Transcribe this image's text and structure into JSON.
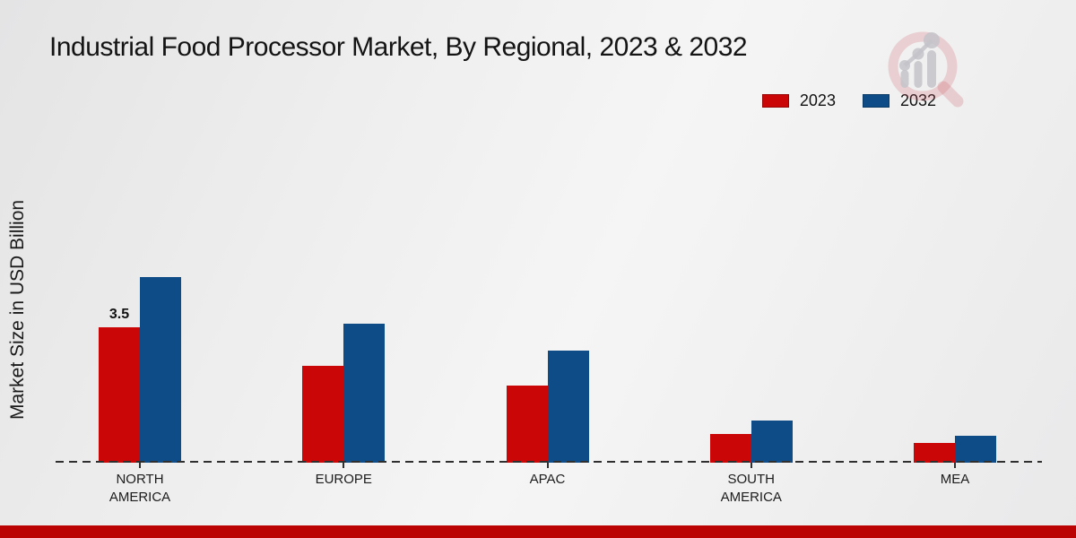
{
  "page": {
    "title": "Industrial Food Processor Market, By Regional, 2023 & 2032",
    "ylabel": "Market Size in USD Billion"
  },
  "legend": {
    "items": [
      {
        "label": "2023",
        "color": "#cb0606"
      },
      {
        "label": "2032",
        "color": "#0d4c87"
      }
    ]
  },
  "colors": {
    "series_2023": "#cb0606",
    "series_2032": "#0d4c87",
    "footer_bar": "#bb0303",
    "axis": "#2f2f2f",
    "background": "#ececec"
  },
  "watermark": {
    "name": "market-research-magnifier-logo"
  },
  "chart_data": {
    "type": "bar",
    "title": "Industrial Food Processor Market, By Regional, 2023 & 2032",
    "ylabel": "Market Size in USD Billion",
    "categories": [
      "NORTH AMERICA",
      "EUROPE",
      "APAC",
      "SOUTH AMERICA",
      "MEA"
    ],
    "series": [
      {
        "name": "2023",
        "color": "#cb0606",
        "values": [
          3.5,
          2.5,
          2.0,
          0.75,
          0.5
        ]
      },
      {
        "name": "2032",
        "color": "#0d4c87",
        "values": [
          4.8,
          3.6,
          2.9,
          1.1,
          0.7
        ]
      }
    ],
    "bar_labels": [
      {
        "series_index": 0,
        "category_index": 0,
        "text": "3.5"
      }
    ],
    "ylim": [
      0,
      5.2
    ],
    "grid": false,
    "baseline_style": "dashed",
    "legend_position": "top-right",
    "axis_tick_labels_shown": false
  }
}
